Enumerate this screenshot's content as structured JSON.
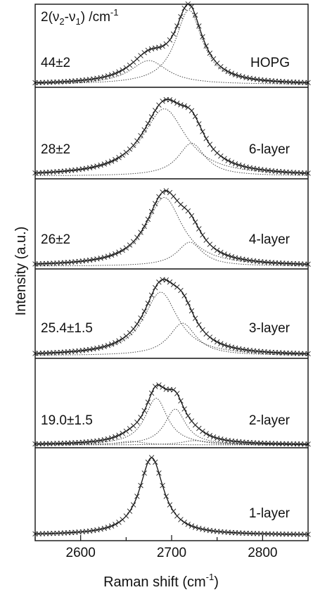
{
  "chart_data": {
    "type": "line",
    "header": {
      "prefix": "2(",
      "nu": "ν",
      "sub2": "2",
      "dash": "-",
      "sub1": "1",
      "suffix": ") /cm",
      "exp": "-1"
    },
    "xlabel": {
      "text": "Raman shift (cm",
      "exp": "-1",
      "close": ")"
    },
    "ylabel": "Intensity (a.u.)",
    "xlim": [
      2550,
      2850
    ],
    "x_ticks": [
      2600,
      2700,
      2800
    ],
    "panels": [
      {
        "label": "HOPG",
        "splitting": "44±2",
        "peaks": [
          {
            "center": 2719,
            "fwhm": 36,
            "height": 1.0
          },
          {
            "center": 2675,
            "fwhm": 50,
            "height": 0.32
          }
        ]
      },
      {
        "label": "6-layer",
        "splitting": "28±2",
        "peaks": [
          {
            "center": 2692,
            "fwhm": 58,
            "height": 0.9
          },
          {
            "center": 2722,
            "fwhm": 36,
            "height": 0.44
          }
        ]
      },
      {
        "label": "4-layer",
        "splitting": "26±2",
        "peaks": [
          {
            "center": 2692,
            "fwhm": 48,
            "height": 0.92
          },
          {
            "center": 2720,
            "fwhm": 34,
            "height": 0.32
          }
        ]
      },
      {
        "label": "3-layer",
        "splitting": "25.4±1.5",
        "peaks": [
          {
            "center": 2688,
            "fwhm": 46,
            "height": 0.9
          },
          {
            "center": 2712,
            "fwhm": 36,
            "height": 0.46
          }
        ]
      },
      {
        "label": "2-layer",
        "splitting": "19.0±1.5",
        "peaks": [
          {
            "center": 2683,
            "fwhm": 30,
            "height": 0.65
          },
          {
            "center": 2704,
            "fwhm": 28,
            "height": 0.5
          },
          {
            "center": 2655,
            "fwhm": 34,
            "height": 0.05
          },
          {
            "center": 2725,
            "fwhm": 34,
            "height": 0.06
          }
        ]
      },
      {
        "label": "1-layer",
        "splitting": "",
        "peaks": [
          {
            "center": 2678,
            "fwhm": 32,
            "height": 1.0
          }
        ]
      }
    ],
    "colors": {
      "line": "#111111",
      "fit": "#444444",
      "marker": "#222222"
    }
  }
}
